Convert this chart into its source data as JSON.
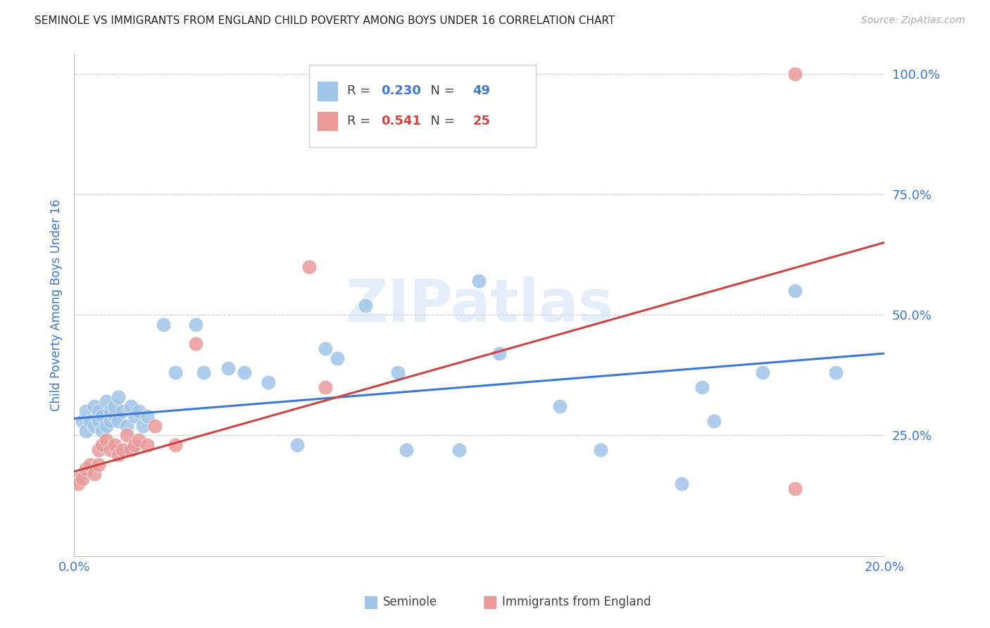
{
  "title": "SEMINOLE VS IMMIGRANTS FROM ENGLAND CHILD POVERTY AMONG BOYS UNDER 16 CORRELATION CHART",
  "source": "Source: ZipAtlas.com",
  "ylabel": "Child Poverty Among Boys Under 16",
  "xlim": [
    0.0,
    0.2
  ],
  "ylim": [
    0.0,
    1.04
  ],
  "blue_color": "#9fc5e8",
  "pink_color": "#ea9999",
  "blue_line_color": "#3c78d8",
  "pink_line_color": "#cc4444",
  "tick_color": "#3c78d8",
  "legend_R_blue": "0.230",
  "legend_N_blue": "49",
  "legend_R_pink": "0.541",
  "legend_N_pink": "25",
  "legend_label_blue": "Seminole",
  "legend_label_pink": "Immigrants from England",
  "watermark": "ZIPatlas",
  "blue_x": [
    0.002,
    0.003,
    0.003,
    0.004,
    0.005,
    0.005,
    0.006,
    0.006,
    0.007,
    0.007,
    0.008,
    0.008,
    0.009,
    0.009,
    0.01,
    0.01,
    0.011,
    0.011,
    0.012,
    0.013,
    0.014,
    0.015,
    0.016,
    0.017,
    0.018,
    0.022,
    0.025,
    0.03,
    0.032,
    0.038,
    0.042,
    0.048,
    0.055,
    0.062,
    0.065,
    0.072,
    0.08,
    0.082,
    0.095,
    0.1,
    0.105,
    0.12,
    0.13,
    0.15,
    0.155,
    0.158,
    0.17,
    0.178,
    0.188
  ],
  "blue_y": [
    0.28,
    0.3,
    0.26,
    0.28,
    0.27,
    0.31,
    0.3,
    0.28,
    0.29,
    0.26,
    0.27,
    0.32,
    0.28,
    0.3,
    0.29,
    0.31,
    0.28,
    0.33,
    0.3,
    0.27,
    0.31,
    0.29,
    0.3,
    0.27,
    0.29,
    0.48,
    0.38,
    0.48,
    0.38,
    0.39,
    0.38,
    0.36,
    0.23,
    0.43,
    0.41,
    0.52,
    0.38,
    0.22,
    0.22,
    0.57,
    0.42,
    0.31,
    0.22,
    0.15,
    0.35,
    0.28,
    0.38,
    0.55,
    0.38
  ],
  "pink_x": [
    0.001,
    0.001,
    0.002,
    0.003,
    0.004,
    0.005,
    0.006,
    0.006,
    0.007,
    0.008,
    0.009,
    0.01,
    0.011,
    0.012,
    0.013,
    0.014,
    0.015,
    0.016,
    0.018,
    0.02,
    0.025,
    0.03,
    0.058,
    0.062,
    0.178
  ],
  "pink_y": [
    0.16,
    0.15,
    0.16,
    0.18,
    0.19,
    0.17,
    0.22,
    0.19,
    0.23,
    0.24,
    0.22,
    0.23,
    0.21,
    0.22,
    0.25,
    0.22,
    0.23,
    0.24,
    0.23,
    0.27,
    0.23,
    0.44,
    0.6,
    0.35,
    0.14
  ]
}
